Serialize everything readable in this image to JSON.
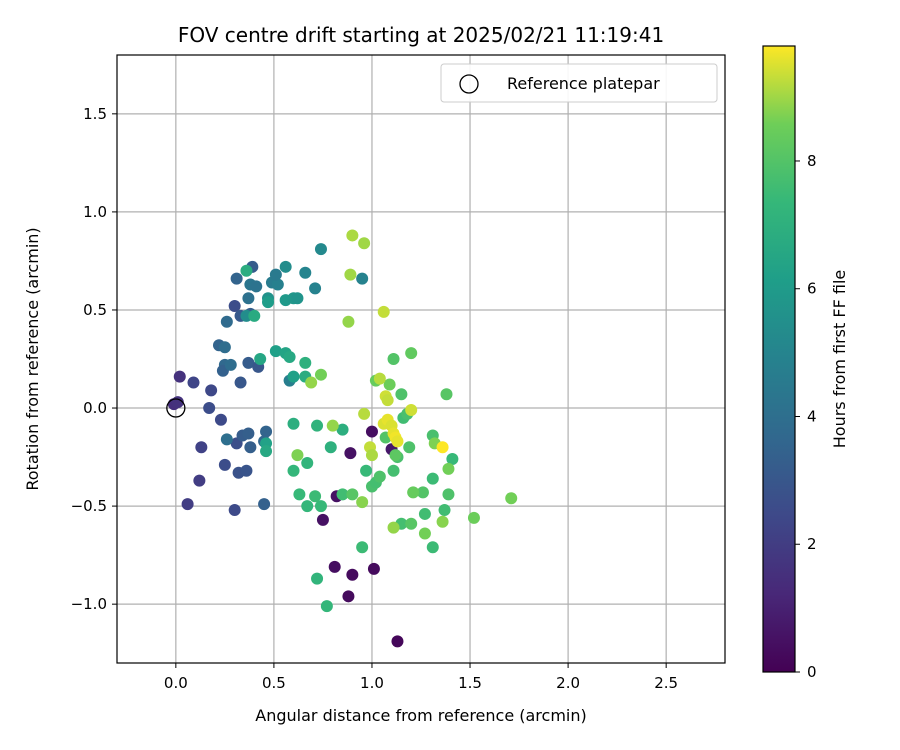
{
  "chart_data": {
    "type": "scatter",
    "title": "FOV centre drift starting at 2025/02/21 11:19:41",
    "xlabel": "Angular distance from reference (arcmin)",
    "ylabel": "Rotation from reference (arcmin)",
    "xlim": [
      -0.3,
      2.8
    ],
    "ylim": [
      -1.3,
      1.8
    ],
    "xticks": [
      0.0,
      0.5,
      1.0,
      1.5,
      2.0,
      2.5
    ],
    "xtick_labels": [
      "0.0",
      "0.5",
      "1.0",
      "1.5",
      "2.0",
      "2.5"
    ],
    "yticks": [
      -1.0,
      -0.5,
      0.0,
      0.5,
      1.0,
      1.5
    ],
    "ytick_labels": [
      "−1.0",
      "−0.5",
      "0.0",
      "0.5",
      "1.0",
      "1.5"
    ],
    "grid": true,
    "legend": {
      "location": "top-right",
      "entries": [
        "Reference platepar"
      ]
    },
    "reference_point": {
      "x": 0.0,
      "y": 0.0,
      "marker": "open-circle"
    },
    "colormap": "viridis",
    "colorbar": {
      "label": "Hours from first FF file",
      "range": [
        0,
        9.8
      ],
      "ticks": [
        0,
        2,
        4,
        6,
        8
      ],
      "tick_labels": [
        "0",
        "2",
        "4",
        "6",
        "8"
      ]
    },
    "points": [
      {
        "x": 1.13,
        "y": -1.19,
        "t": 0.2
      },
      {
        "x": 0.88,
        "y": -0.96,
        "t": 0.3
      },
      {
        "x": 0.9,
        "y": -0.85,
        "t": 0.3
      },
      {
        "x": 0.81,
        "y": -0.81,
        "t": 0.4
      },
      {
        "x": 1.01,
        "y": -0.82,
        "t": 0.3
      },
      {
        "x": 0.75,
        "y": -0.57,
        "t": 0.5
      },
      {
        "x": 0.82,
        "y": -0.45,
        "t": 0.5
      },
      {
        "x": 0.89,
        "y": -0.23,
        "t": 0.5
      },
      {
        "x": 1.0,
        "y": -0.12,
        "t": 0.4
      },
      {
        "x": 1.1,
        "y": -0.21,
        "t": 0.7
      },
      {
        "x": -0.01,
        "y": 0.02,
        "t": 1.5
      },
      {
        "x": 0.01,
        "y": 0.03,
        "t": 1.6
      },
      {
        "x": 0.02,
        "y": 0.16,
        "t": 1.6
      },
      {
        "x": 0.06,
        "y": -0.49,
        "t": 2.0
      },
      {
        "x": 0.12,
        "y": -0.37,
        "t": 2.0
      },
      {
        "x": 0.13,
        "y": -0.2,
        "t": 2.2
      },
      {
        "x": 0.09,
        "y": 0.13,
        "t": 2.3
      },
      {
        "x": 0.18,
        "y": 0.09,
        "t": 2.4
      },
      {
        "x": 0.17,
        "y": 0.0,
        "t": 2.6
      },
      {
        "x": 0.23,
        "y": -0.06,
        "t": 2.5
      },
      {
        "x": 0.25,
        "y": -0.29,
        "t": 2.6
      },
      {
        "x": 0.3,
        "y": -0.52,
        "t": 2.5
      },
      {
        "x": 0.31,
        "y": -0.18,
        "t": 2.7
      },
      {
        "x": 0.32,
        "y": -0.33,
        "t": 2.8
      },
      {
        "x": 0.36,
        "y": -0.32,
        "t": 2.9
      },
      {
        "x": 0.33,
        "y": 0.13,
        "t": 3.0
      },
      {
        "x": 0.3,
        "y": 0.52,
        "t": 2.6
      },
      {
        "x": 0.33,
        "y": 0.47,
        "t": 3.1
      },
      {
        "x": 0.38,
        "y": 0.48,
        "t": 3.3
      },
      {
        "x": 0.31,
        "y": 0.66,
        "t": 3.5
      },
      {
        "x": 0.39,
        "y": 0.72,
        "t": 3.2
      },
      {
        "x": 0.37,
        "y": 0.23,
        "t": 3.2
      },
      {
        "x": 0.42,
        "y": 0.21,
        "t": 3.0
      },
      {
        "x": 0.22,
        "y": 0.32,
        "t": 3.5
      },
      {
        "x": 0.25,
        "y": 0.31,
        "t": 3.9
      },
      {
        "x": 0.25,
        "y": 0.22,
        "t": 3.7
      },
      {
        "x": 0.24,
        "y": 0.19,
        "t": 3.4
      },
      {
        "x": 0.26,
        "y": 0.44,
        "t": 3.8
      },
      {
        "x": 0.34,
        "y": -0.14,
        "t": 3.2
      },
      {
        "x": 0.37,
        "y": -0.13,
        "t": 3.3
      },
      {
        "x": 0.38,
        "y": -0.2,
        "t": 3.3
      },
      {
        "x": 0.45,
        "y": -0.17,
        "t": 3.6
      },
      {
        "x": 0.46,
        "y": -0.12,
        "t": 3.5
      },
      {
        "x": 0.45,
        "y": -0.49,
        "t": 3.4
      },
      {
        "x": 0.26,
        "y": -0.16,
        "t": 4.0
      },
      {
        "x": 0.28,
        "y": 0.22,
        "t": 3.9
      },
      {
        "x": 0.37,
        "y": 0.56,
        "t": 4.1
      },
      {
        "x": 0.38,
        "y": 0.63,
        "t": 4.3
      },
      {
        "x": 0.41,
        "y": 0.62,
        "t": 4.2
      },
      {
        "x": 0.49,
        "y": 0.64,
        "t": 4.6
      },
      {
        "x": 0.52,
        "y": 0.63,
        "t": 4.8
      },
      {
        "x": 0.51,
        "y": 0.68,
        "t": 4.5
      },
      {
        "x": 0.58,
        "y": 0.14,
        "t": 4.7
      },
      {
        "x": 0.66,
        "y": 0.69,
        "t": 5.0
      },
      {
        "x": 0.71,
        "y": 0.61,
        "t": 4.9
      },
      {
        "x": 0.74,
        "y": 0.81,
        "t": 5.2
      },
      {
        "x": 0.95,
        "y": 0.66,
        "t": 4.9
      },
      {
        "x": 0.56,
        "y": 0.72,
        "t": 5.4
      },
      {
        "x": 0.47,
        "y": 0.56,
        "t": 5.6
      },
      {
        "x": 0.36,
        "y": 0.47,
        "t": 5.4
      },
      {
        "x": 0.56,
        "y": 0.55,
        "t": 5.9
      },
      {
        "x": 0.6,
        "y": 0.56,
        "t": 5.8
      },
      {
        "x": 0.62,
        "y": 0.56,
        "t": 5.7
      },
      {
        "x": 0.47,
        "y": 0.54,
        "t": 6.1
      },
      {
        "x": 0.51,
        "y": 0.29,
        "t": 6.2
      },
      {
        "x": 0.56,
        "y": 0.28,
        "t": 6.4
      },
      {
        "x": 0.58,
        "y": 0.26,
        "t": 6.6
      },
      {
        "x": 0.6,
        "y": 0.16,
        "t": 6.2
      },
      {
        "x": 0.43,
        "y": 0.25,
        "t": 6.5
      },
      {
        "x": 0.46,
        "y": -0.18,
        "t": 6.3
      },
      {
        "x": 0.46,
        "y": -0.22,
        "t": 6.6
      },
      {
        "x": 0.36,
        "y": 0.7,
        "t": 6.8
      },
      {
        "x": 0.4,
        "y": 0.47,
        "t": 6.7
      },
      {
        "x": 0.6,
        "y": -0.08,
        "t": 6.9
      },
      {
        "x": 0.66,
        "y": 0.16,
        "t": 6.8
      },
      {
        "x": 0.66,
        "y": 0.23,
        "t": 7.0
      },
      {
        "x": 0.72,
        "y": -0.09,
        "t": 7.1
      },
      {
        "x": 0.79,
        "y": -0.2,
        "t": 7.0
      },
      {
        "x": 0.85,
        "y": -0.11,
        "t": 6.9
      },
      {
        "x": 0.67,
        "y": -0.28,
        "t": 7.2
      },
      {
        "x": 0.6,
        "y": -0.32,
        "t": 7.3
      },
      {
        "x": 0.63,
        "y": -0.44,
        "t": 7.4
      },
      {
        "x": 0.67,
        "y": -0.5,
        "t": 7.3
      },
      {
        "x": 0.71,
        "y": -0.45,
        "t": 7.5
      },
      {
        "x": 0.74,
        "y": -0.5,
        "t": 7.4
      },
      {
        "x": 0.72,
        "y": -0.87,
        "t": 7.2
      },
      {
        "x": 0.77,
        "y": -1.01,
        "t": 7.3
      },
      {
        "x": 0.95,
        "y": -0.71,
        "t": 7.5
      },
      {
        "x": 0.85,
        "y": -0.44,
        "t": 7.6
      },
      {
        "x": 0.97,
        "y": -0.32,
        "t": 7.4
      },
      {
        "x": 1.0,
        "y": -0.4,
        "t": 7.8
      },
      {
        "x": 1.02,
        "y": -0.38,
        "t": 7.7
      },
      {
        "x": 1.04,
        "y": -0.35,
        "t": 7.9
      },
      {
        "x": 1.11,
        "y": -0.32,
        "t": 7.7
      },
      {
        "x": 1.13,
        "y": -0.25,
        "t": 7.8
      },
      {
        "x": 1.15,
        "y": -0.59,
        "t": 7.7
      },
      {
        "x": 1.07,
        "y": -0.15,
        "t": 8.0
      },
      {
        "x": 1.16,
        "y": -0.05,
        "t": 7.6
      },
      {
        "x": 1.18,
        "y": -0.03,
        "t": 7.8
      },
      {
        "x": 1.15,
        "y": 0.07,
        "t": 7.9
      },
      {
        "x": 1.19,
        "y": -0.2,
        "t": 7.9
      },
      {
        "x": 1.2,
        "y": -0.59,
        "t": 8.1
      },
      {
        "x": 1.27,
        "y": -0.54,
        "t": 7.6
      },
      {
        "x": 1.31,
        "y": -0.36,
        "t": 7.5
      },
      {
        "x": 1.31,
        "y": -0.71,
        "t": 7.5
      },
      {
        "x": 1.31,
        "y": -0.14,
        "t": 7.8
      },
      {
        "x": 1.37,
        "y": -0.52,
        "t": 7.6
      },
      {
        "x": 1.39,
        "y": -0.44,
        "t": 7.9
      },
      {
        "x": 1.41,
        "y": -0.26,
        "t": 7.4
      },
      {
        "x": 1.38,
        "y": 0.07,
        "t": 8.1
      },
      {
        "x": 1.11,
        "y": 0.25,
        "t": 8.0
      },
      {
        "x": 1.2,
        "y": 0.28,
        "t": 8.3
      },
      {
        "x": 1.26,
        "y": -0.43,
        "t": 8.0
      },
      {
        "x": 1.12,
        "y": -0.24,
        "t": 8.2
      },
      {
        "x": 0.9,
        "y": -0.44,
        "t": 8.1
      },
      {
        "x": 1.02,
        "y": 0.14,
        "t": 8.4
      },
      {
        "x": 1.09,
        "y": 0.12,
        "t": 8.5
      },
      {
        "x": 1.21,
        "y": -0.43,
        "t": 8.4
      },
      {
        "x": 1.27,
        "y": -0.64,
        "t": 8.6
      },
      {
        "x": 1.32,
        "y": -0.18,
        "t": 8.7
      },
      {
        "x": 1.36,
        "y": -0.58,
        "t": 8.8
      },
      {
        "x": 1.39,
        "y": -0.31,
        "t": 8.6
      },
      {
        "x": 1.52,
        "y": -0.56,
        "t": 8.5
      },
      {
        "x": 1.71,
        "y": -0.46,
        "t": 8.6
      },
      {
        "x": 1.11,
        "y": -0.61,
        "t": 8.9
      },
      {
        "x": 0.62,
        "y": -0.24,
        "t": 8.7
      },
      {
        "x": 0.69,
        "y": 0.13,
        "t": 8.9
      },
      {
        "x": 0.74,
        "y": 0.17,
        "t": 8.6
      },
      {
        "x": 0.8,
        "y": -0.09,
        "t": 8.9
      },
      {
        "x": 0.95,
        "y": -0.48,
        "t": 8.8
      },
      {
        "x": 0.88,
        "y": 0.44,
        "t": 8.9
      },
      {
        "x": 0.89,
        "y": 0.68,
        "t": 9.0
      },
      {
        "x": 0.9,
        "y": 0.88,
        "t": 9.1
      },
      {
        "x": 0.96,
        "y": 0.84,
        "t": 9.0
      },
      {
        "x": 0.96,
        "y": -0.03,
        "t": 9.2
      },
      {
        "x": 0.99,
        "y": -0.2,
        "t": 9.3
      },
      {
        "x": 1.0,
        "y": -0.24,
        "t": 9.1
      },
      {
        "x": 1.04,
        "y": 0.15,
        "t": 9.2
      },
      {
        "x": 1.06,
        "y": 0.49,
        "t": 9.3
      },
      {
        "x": 1.07,
        "y": 0.06,
        "t": 9.4
      },
      {
        "x": 1.08,
        "y": 0.04,
        "t": 9.3
      },
      {
        "x": 1.06,
        "y": -0.08,
        "t": 9.5
      },
      {
        "x": 1.08,
        "y": -0.06,
        "t": 9.6
      },
      {
        "x": 1.1,
        "y": -0.09,
        "t": 9.5
      },
      {
        "x": 1.11,
        "y": -0.13,
        "t": 9.6
      },
      {
        "x": 1.12,
        "y": -0.15,
        "t": 9.7
      },
      {
        "x": 1.13,
        "y": -0.17,
        "t": 9.6
      },
      {
        "x": 1.2,
        "y": -0.01,
        "t": 9.4
      },
      {
        "x": 1.36,
        "y": -0.2,
        "t": 9.8
      }
    ]
  }
}
